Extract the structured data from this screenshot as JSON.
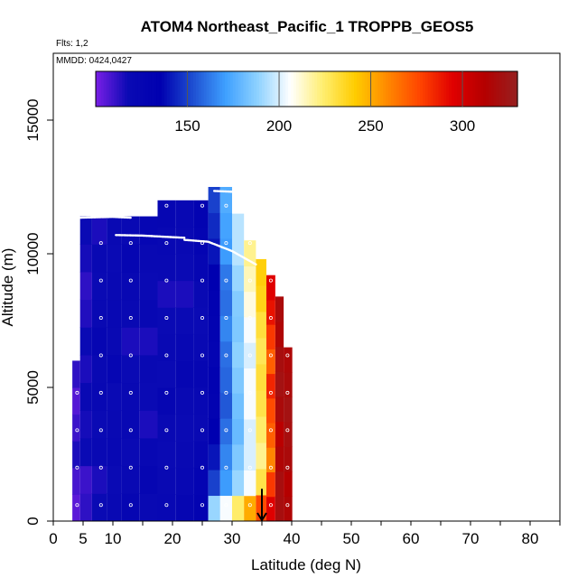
{
  "chart_data": {
    "type": "heatmap",
    "title": "ATOM4 Northeast_Pacific_1 TROPPB_GEOS5",
    "subtitle_flights": "Flts: 1,2",
    "subtitle_dates": "MMDD: 0424,0427",
    "xlabel": "Latitude (deg N)",
    "ylabel": "Altitude (m)",
    "xlim": [
      0,
      85
    ],
    "ylim": [
      0,
      17500
    ],
    "x_ticks": [
      0,
      5,
      10,
      20,
      30,
      40,
      50,
      60,
      70,
      80
    ],
    "y_ticks": [
      0,
      5000,
      10000,
      15000
    ],
    "colorbar": {
      "range": [
        100,
        330
      ],
      "ticks": [
        150,
        200,
        250,
        300
      ],
      "colors": [
        "#7a1fe6",
        "#0a0ab4",
        "#0000b0",
        "#1e4fd2",
        "#3ea0ff",
        "#8fd2ff",
        "#ffffff",
        "#ffee70",
        "#ffcc00",
        "#ff8800",
        "#ff4400",
        "#e00000",
        "#b40000",
        "#962020"
      ]
    },
    "columns": [
      {
        "lat": 4,
        "top": 6000,
        "values": [
          105,
          108,
          115,
          110,
          106,
          112
        ]
      },
      {
        "lat": 5,
        "top": 11400,
        "values": [
          112,
          110,
          118,
          116,
          120,
          115,
          118,
          114,
          112,
          116,
          118
        ]
      },
      {
        "lat": 8,
        "top": 11400,
        "values": [
          118,
          115,
          120,
          118,
          122,
          120,
          125,
          120,
          118,
          120,
          115
        ]
      },
      {
        "lat": 10,
        "top": 11400,
        "values": [
          120,
          118,
          122,
          120,
          118,
          124,
          120,
          122,
          120,
          118,
          120
        ]
      },
      {
        "lat": 13,
        "top": 11400,
        "values": [
          125,
          120,
          118,
          122,
          120,
          118,
          115,
          120,
          122,
          125,
          120
        ]
      },
      {
        "lat": 16,
        "top": 11400,
        "values": [
          120,
          125,
          122,
          115,
          118,
          120,
          115,
          122,
          118,
          120,
          124
        ]
      },
      {
        "lat": 19,
        "top": 12000,
        "values": [
          122,
          120,
          118,
          120,
          125,
          118,
          120,
          118,
          115,
          120,
          122,
          125
        ]
      },
      {
        "lat": 22,
        "top": 12000,
        "values": [
          125,
          122,
          120,
          118,
          120,
          125,
          122,
          118,
          115,
          118,
          120,
          122
        ]
      },
      {
        "lat": 25,
        "top": 12000,
        "values": [
          130,
          128,
          125,
          120,
          122,
          125,
          120,
          118,
          120,
          125,
          128,
          130
        ]
      },
      {
        "lat": 27,
        "top": 12500,
        "values": [
          190,
          150,
          140,
          135,
          130,
          132,
          128,
          130,
          132,
          135,
          140,
          145,
          150
        ]
      },
      {
        "lat": 29,
        "top": 12500,
        "values": [
          205,
          170,
          165,
          160,
          155,
          158,
          160,
          165,
          160,
          162,
          170,
          172,
          175
        ]
      },
      {
        "lat": 31,
        "top": 11500,
        "values": [
          225,
          190,
          185,
          180,
          182,
          185,
          188,
          185,
          186,
          190,
          195,
          195
        ]
      },
      {
        "lat": 33,
        "top": 10500,
        "values": [
          250,
          205,
          200,
          200,
          205,
          205,
          200,
          205,
          210,
          215,
          220
        ]
      },
      {
        "lat": 35,
        "top": 9800,
        "values": [
          275,
          230,
          220,
          225,
          230,
          232,
          228,
          232,
          238,
          240
        ]
      },
      {
        "lat": 36.5,
        "top": 9200,
        "values": [
          295,
          280,
          260,
          270,
          275,
          285,
          270,
          280,
          290,
          295
        ]
      },
      {
        "lat": 38,
        "top": 8400,
        "values": [
          320,
          320,
          315,
          310,
          318,
          322,
          320,
          315,
          318
        ]
      },
      {
        "lat": 39.3,
        "top": 6500,
        "values": [
          315,
          312,
          318,
          320,
          322,
          318,
          316
        ]
      }
    ],
    "obs_tracks": [
      {
        "points": [
          [
            4.5,
            11350
          ],
          [
            10,
            11380
          ],
          [
            13,
            11350
          ]
        ]
      },
      {
        "points": [
          [
            10.5,
            10700
          ],
          [
            15,
            10680
          ],
          [
            20,
            10620
          ],
          [
            22,
            10600
          ]
        ]
      },
      {
        "points": [
          [
            22,
            10520
          ],
          [
            26,
            10450
          ],
          [
            30,
            10100
          ],
          [
            34,
            9600
          ]
        ]
      },
      {
        "points": [
          [
            27,
            12350
          ],
          [
            32,
            12300
          ]
        ]
      }
    ],
    "tropopause_arrow_lat": 35
  }
}
